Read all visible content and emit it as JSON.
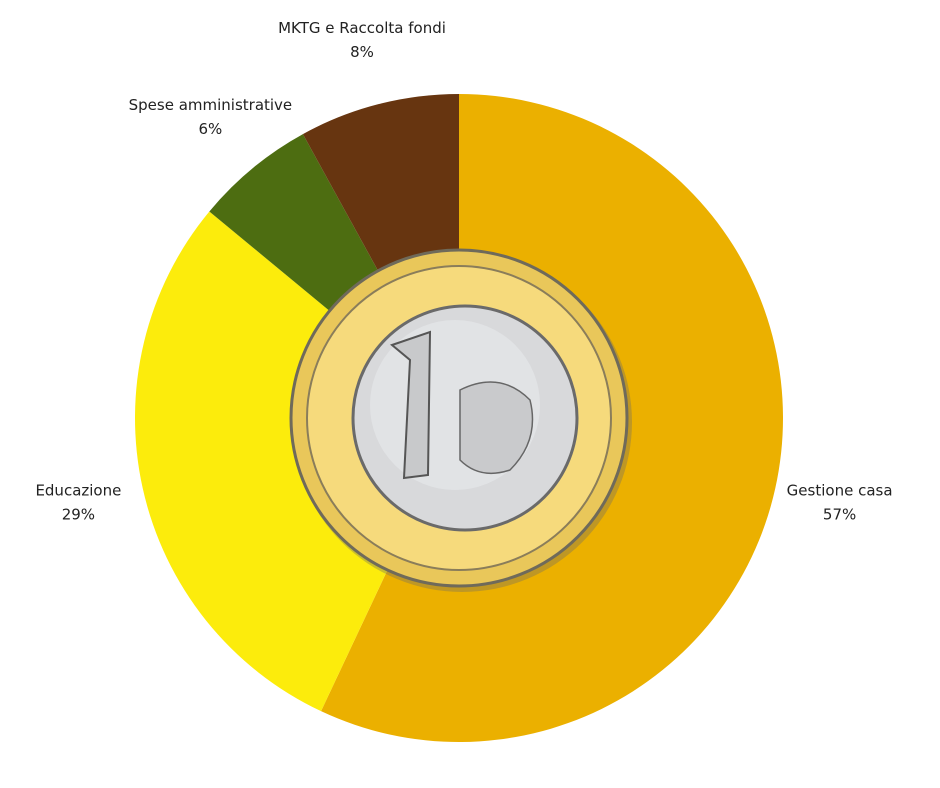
{
  "chart_data": {
    "type": "pie",
    "categories": [
      "Gestione casa",
      "Educazione",
      "Spese amministrative",
      "MKTG e Raccolta fondi"
    ],
    "values": [
      57,
      29,
      6,
      8
    ],
    "value_labels": [
      "57%",
      "29%",
      "6%",
      "8%"
    ],
    "colors": [
      "#ebb000",
      "#fcec0c",
      "#4d6d11",
      "#673510"
    ]
  }
}
